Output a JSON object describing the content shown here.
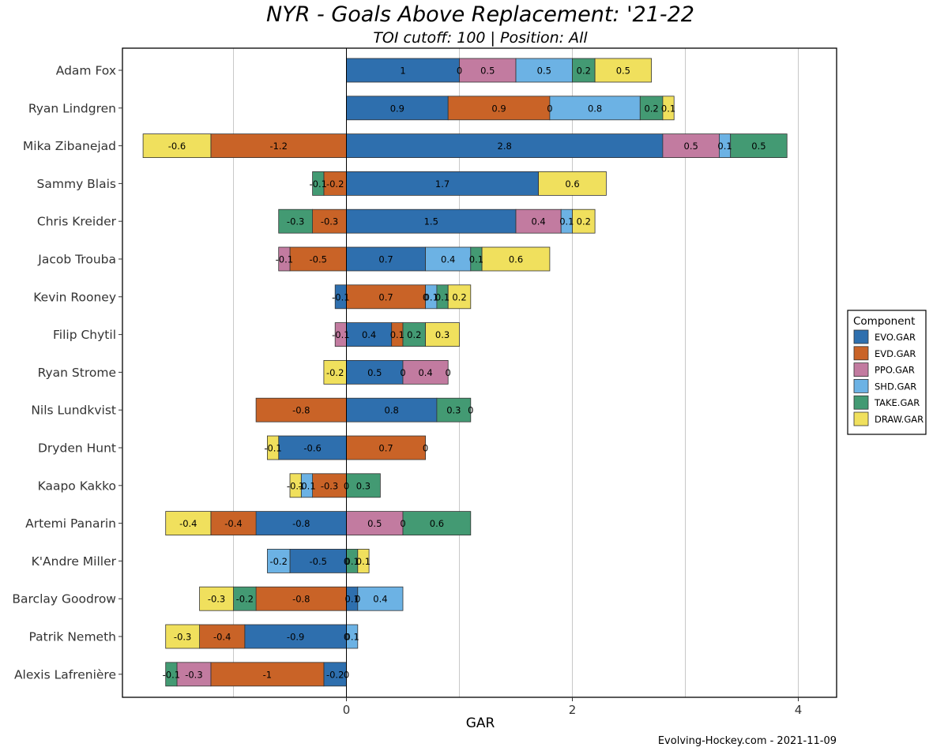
{
  "chart_data": {
    "type": "bar",
    "orientation": "horizontal",
    "stacked": true,
    "title": "NYR - Goals Above Replacement: '21-22",
    "subtitle": "TOI cutoff: 100 | Position: All",
    "xlabel": "GAR",
    "caption": "Evolving-Hockey.com - 2021-11-09",
    "xlim": [
      -2.0,
      4.3
    ],
    "xticks": [
      0,
      2,
      4
    ],
    "grid": "vertical major gridlines",
    "legend": {
      "title": "Component",
      "position": "right"
    },
    "components": [
      {
        "name": "EVO.GAR",
        "color": "#2e6fae"
      },
      {
        "name": "EVD.GAR",
        "color": "#c96327"
      },
      {
        "name": "PPO.GAR",
        "color": "#c27ba0"
      },
      {
        "name": "SHD.GAR",
        "color": "#6cb2e4"
      },
      {
        "name": "TAKE.GAR",
        "color": "#439a73"
      },
      {
        "name": "DRAW.GAR",
        "color": "#f0e05d"
      }
    ],
    "players": [
      {
        "name": "Adam Fox",
        "values": [
          1.0,
          0.0,
          0.5,
          0.5,
          0.2,
          0.5
        ],
        "labels": [
          "1",
          "0",
          "0.5",
          "0.5",
          "0.2",
          "0.5"
        ]
      },
      {
        "name": "Ryan Lindgren",
        "values": [
          0.9,
          0.9,
          0.0,
          0.8,
          0.2,
          0.1
        ],
        "labels": [
          "0.9",
          "0.9",
          "0",
          "0.8",
          "0.2",
          "0.1"
        ]
      },
      {
        "name": "Mika Zibanejad",
        "values": [
          2.8,
          -1.2,
          0.5,
          0.1,
          0.5,
          -0.6
        ],
        "labels": [
          "2.8",
          "-1.2",
          "0.5",
          "0.1",
          "0.5",
          "-0.6"
        ]
      },
      {
        "name": "Sammy Blais",
        "values": [
          1.7,
          -0.2,
          0.0,
          0.0,
          -0.1,
          0.6
        ],
        "labels": [
          "1.7",
          "-0.2",
          "",
          "",
          "-0.1",
          "0.6"
        ]
      },
      {
        "name": "Chris Kreider",
        "values": [
          1.5,
          -0.3,
          0.4,
          0.1,
          -0.3,
          0.2
        ],
        "labels": [
          "1.5",
          "-0.3",
          "0.4",
          "0.1",
          "-0.3",
          "0.2"
        ]
      },
      {
        "name": "Jacob Trouba",
        "values": [
          0.7,
          -0.5,
          -0.1,
          0.4,
          0.1,
          0.6
        ],
        "labels": [
          "0.7",
          "-0.5",
          "-0.1",
          "0.4",
          "0.1",
          "0.6"
        ]
      },
      {
        "name": "Kevin Rooney",
        "values": [
          -0.1,
          0.7,
          0.0,
          0.1,
          0.1,
          0.2
        ],
        "labels": [
          "-0.1",
          "0.7",
          "0",
          "0.1",
          "0.1",
          "0.2"
        ]
      },
      {
        "name": "Filip Chytil",
        "values": [
          0.4,
          0.1,
          -0.1,
          0.0,
          0.2,
          0.3
        ],
        "labels": [
          "0.4",
          "0.1",
          "-0.1",
          "",
          "0.2",
          "0.3"
        ]
      },
      {
        "name": "Ryan Strome",
        "values": [
          0.5,
          0.0,
          0.4,
          0.0,
          0.0,
          -0.2
        ],
        "labels": [
          "0.5",
          "0",
          "0.4",
          "0",
          "",
          "-0.2"
        ]
      },
      {
        "name": "Nils Lundkvist",
        "values": [
          0.8,
          -0.8,
          0.0,
          0.0,
          0.3,
          0.0
        ],
        "labels": [
          "0.8",
          "-0.8",
          "",
          "",
          "0.3",
          "0"
        ]
      },
      {
        "name": "Dryden Hunt",
        "values": [
          -0.6,
          0.7,
          0.0,
          0.0,
          0.0,
          -0.1
        ],
        "labels": [
          "-0.6",
          "0.7",
          "0",
          "",
          "",
          "-0.1"
        ]
      },
      {
        "name": "Kaapo Kakko",
        "values": [
          0.0,
          -0.3,
          0.0,
          -0.1,
          0.3,
          -0.1
        ],
        "labels": [
          "0",
          "-0.3",
          "",
          "-0.1",
          "0.3",
          "-0.1"
        ]
      },
      {
        "name": "Artemi Panarin",
        "values": [
          -0.8,
          -0.4,
          0.5,
          0.0,
          0.6,
          -0.4
        ],
        "labels": [
          "-0.8",
          "-0.4",
          "0.5",
          "0",
          "0.6",
          "-0.4"
        ]
      },
      {
        "name": "K'Andre Miller",
        "values": [
          -0.5,
          0.0,
          0.0,
          -0.2,
          0.1,
          0.1
        ],
        "labels": [
          "-0.5",
          "0",
          "",
          "-0.2",
          "0.1",
          "0.1"
        ]
      },
      {
        "name": "Barclay Goodrow",
        "values": [
          0.1,
          -0.8,
          0.0,
          0.4,
          -0.2,
          -0.3
        ],
        "labels": [
          "0.1",
          "-0.8",
          "0",
          "0.4",
          "-0.2",
          "-0.3"
        ]
      },
      {
        "name": "Patrik Nemeth",
        "values": [
          -0.9,
          -0.4,
          0.0,
          0.1,
          0.0,
          -0.3
        ],
        "labels": [
          "-0.9",
          "-0.4",
          "0",
          "0.1",
          "",
          "-0.3"
        ]
      },
      {
        "name": "Alexis Lafrenière",
        "values": [
          -0.2,
          -1.0,
          -0.3,
          0.0,
          -0.1,
          0.0
        ],
        "labels": [
          "-0.2",
          "-1",
          "-0.3",
          "0",
          "-0.1",
          ""
        ]
      }
    ]
  }
}
